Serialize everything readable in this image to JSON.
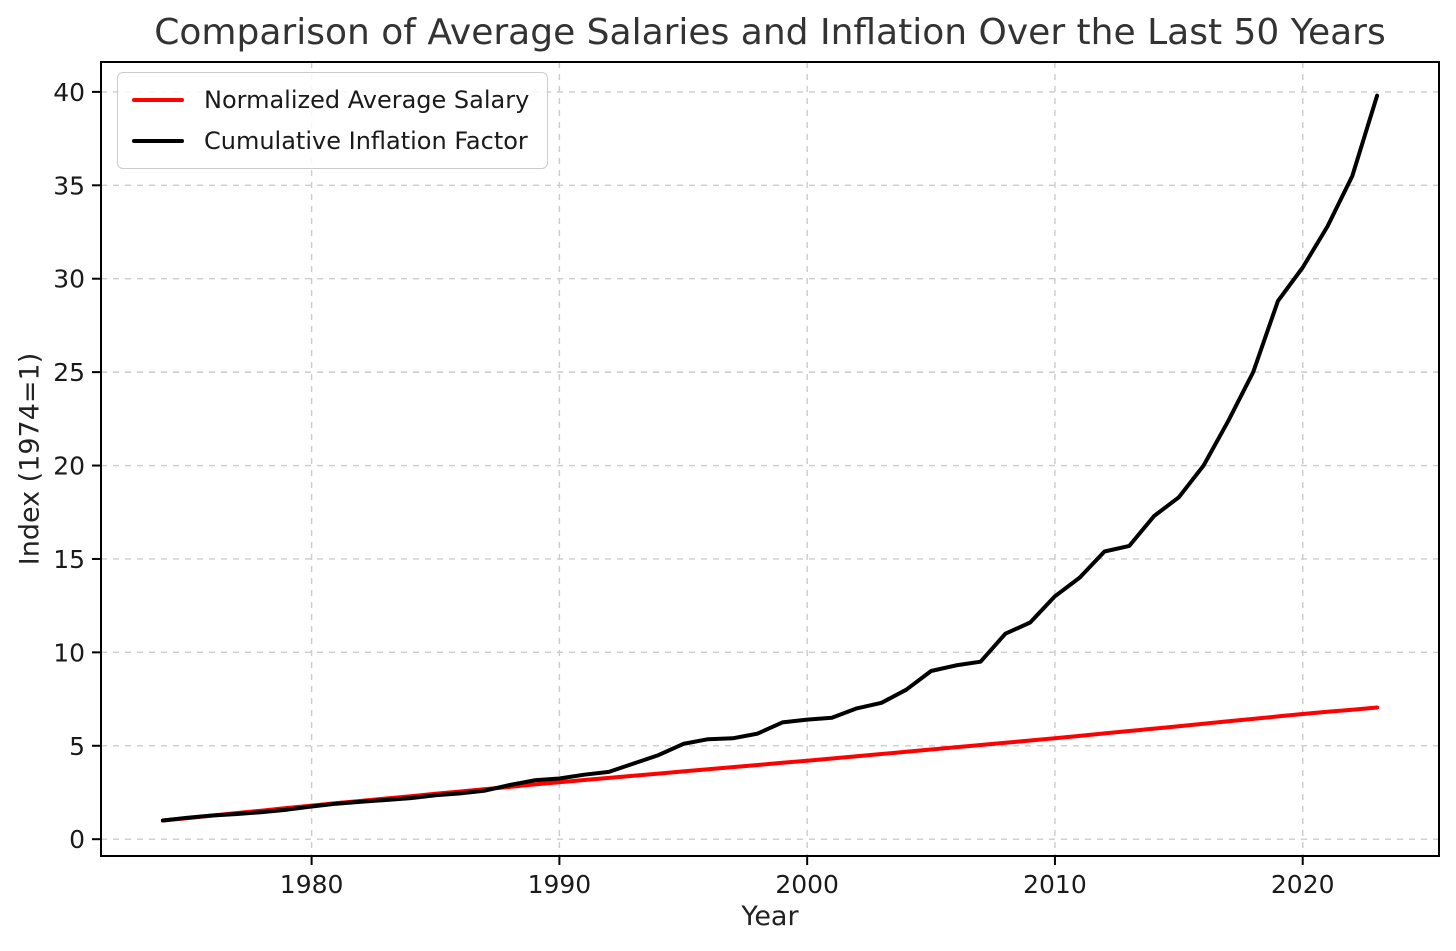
{
  "chart_data": {
    "type": "line",
    "title": "Comparison of Average Salaries and Inflation Over the Last 50 Years",
    "xlabel": "Year",
    "ylabel": "Index (1974=1)",
    "xlim": [
      1971.5,
      2025.5
    ],
    "ylim": [
      -0.9,
      41.6
    ],
    "x_ticks": [
      1980,
      1990,
      2000,
      2010,
      2020
    ],
    "y_ticks": [
      0,
      5,
      10,
      15,
      20,
      25,
      30,
      35,
      40
    ],
    "grid": true,
    "grid_style": "dashed",
    "legend_position": "upper left",
    "x": [
      1974,
      1975,
      1976,
      1977,
      1978,
      1979,
      1980,
      1981,
      1982,
      1983,
      1984,
      1985,
      1986,
      1987,
      1988,
      1989,
      1990,
      1991,
      1992,
      1993,
      1994,
      1995,
      1996,
      1997,
      1998,
      1999,
      2000,
      2001,
      2002,
      2003,
      2004,
      2005,
      2006,
      2007,
      2008,
      2009,
      2010,
      2011,
      2012,
      2013,
      2014,
      2015,
      2016,
      2017,
      2018,
      2019,
      2020,
      2021,
      2022,
      2023
    ],
    "series": [
      {
        "name": "Normalized Average Salary",
        "color": "#ff0000",
        "values": [
          1.0,
          1.13,
          1.27,
          1.4,
          1.53,
          1.67,
          1.8,
          1.93,
          2.05,
          2.18,
          2.3,
          2.43,
          2.55,
          2.68,
          2.8,
          2.93,
          3.05,
          3.17,
          3.28,
          3.4,
          3.51,
          3.63,
          3.74,
          3.86,
          3.97,
          4.09,
          4.2,
          4.32,
          4.44,
          4.56,
          4.68,
          4.8,
          4.92,
          5.04,
          5.16,
          5.28,
          5.4,
          5.53,
          5.66,
          5.79,
          5.92,
          6.05,
          6.18,
          6.31,
          6.44,
          6.57,
          6.7,
          6.82,
          6.93,
          7.05
        ]
      },
      {
        "name": "Cumulative Inflation Factor",
        "color": "#000000",
        "values": [
          1.0,
          1.15,
          1.27,
          1.35,
          1.45,
          1.58,
          1.75,
          1.9,
          2.0,
          2.1,
          2.2,
          2.35,
          2.45,
          2.6,
          2.9,
          3.15,
          3.25,
          3.45,
          3.6,
          4.05,
          4.5,
          5.1,
          5.35,
          5.4,
          5.65,
          6.25,
          6.4,
          6.5,
          7.0,
          7.3,
          8.0,
          9.0,
          9.3,
          9.5,
          11.0,
          11.6,
          13.0,
          14.0,
          15.4,
          15.7,
          17.3,
          18.3,
          20.0,
          22.4,
          25.0,
          28.8,
          30.6,
          32.8,
          35.5,
          39.8
        ]
      }
    ]
  },
  "style": {
    "grid_color": "#cccccc",
    "frame_color": "#000000",
    "tick_color": "#000000",
    "tick_label_color": "#1a1a1a",
    "title_color": "#333333",
    "background": "#ffffff"
  }
}
